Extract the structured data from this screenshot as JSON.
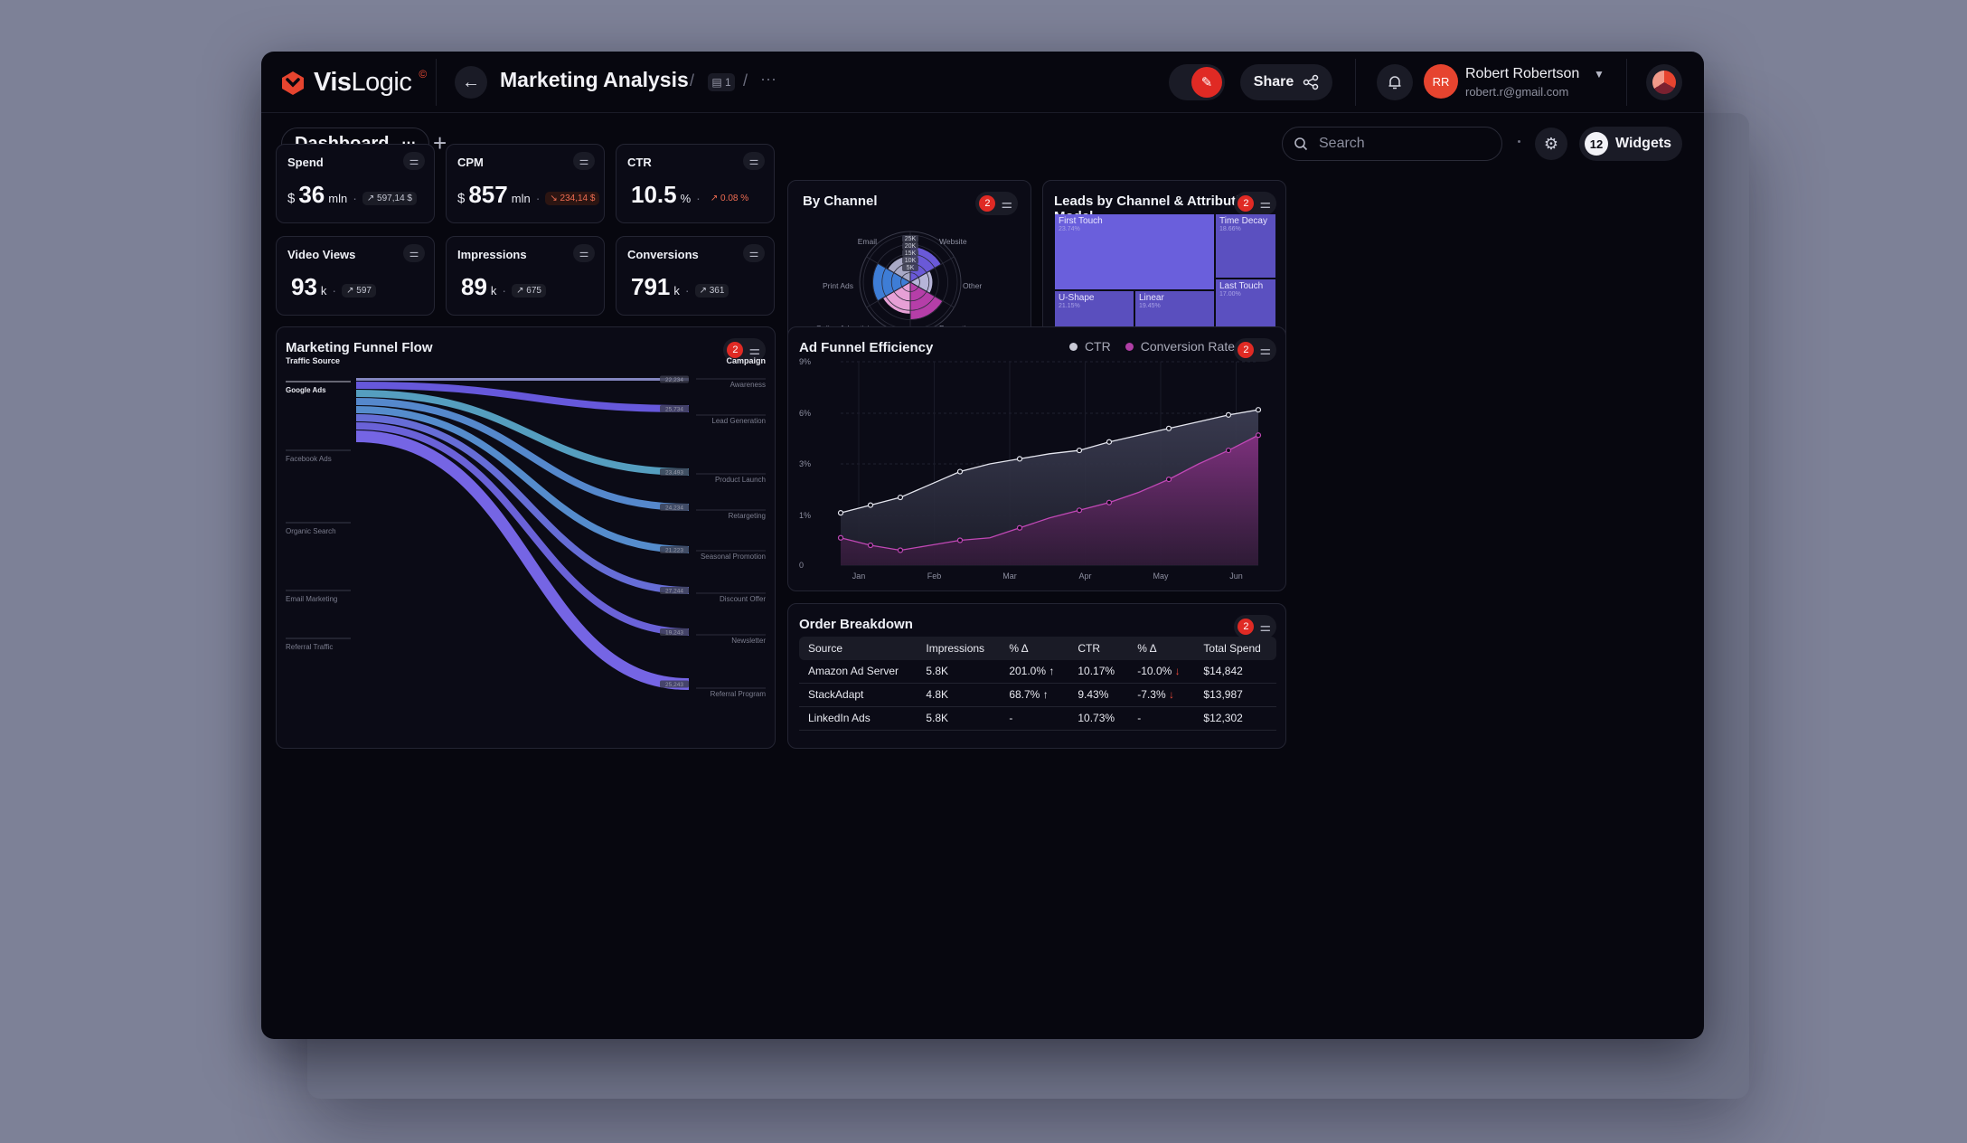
{
  "app": {
    "logo_text_bold": "Vis",
    "logo_text": "Logic",
    "logo_sup": "©",
    "title": "Marketing Analysis",
    "crumb_sep": "/",
    "crumb_box": "1",
    "crumb_more": "···"
  },
  "header": {
    "share_label": "Share",
    "user_initials": "RR",
    "user_name": "Robert Robertson",
    "user_email": "robert.r@gmail.com"
  },
  "subbar": {
    "tab_label": "Dashboard",
    "tab_more": "···",
    "add": "+",
    "search_placeholder": "Search",
    "widgets_count": "12",
    "widgets_label": "Widgets"
  },
  "kpis": [
    {
      "title": "Spend",
      "prefix": "$",
      "value": "36",
      "suffix": "mln",
      "delta": "↗ 597,14 $",
      "delta_style": "neutral"
    },
    {
      "title": "CPM",
      "prefix": "$",
      "value": "857",
      "suffix": "mln",
      "delta": "↘ 234,14 $",
      "delta_style": "red"
    },
    {
      "title": "CTR",
      "prefix": "",
      "value": "10.5",
      "suffix": "%",
      "delta": "↗ 0.08 %",
      "delta_style": "redtxt"
    },
    {
      "title": "Video Views",
      "prefix": "",
      "value": "93",
      "suffix": "k",
      "delta": "↗ 597",
      "delta_style": "neutral"
    },
    {
      "title": "Impressions",
      "prefix": "",
      "value": "89",
      "suffix": "k",
      "delta": "↗ 675",
      "delta_style": "neutral"
    },
    {
      "title": "Conversions",
      "prefix": "",
      "value": "791",
      "suffix": "k",
      "delta": "↗ 361",
      "delta_style": "neutral"
    }
  ],
  "by_channel": {
    "title": "By Channel",
    "badge": "2",
    "rings": [
      "25K",
      "20K",
      "15K",
      "10K",
      "5K"
    ],
    "categories": [
      "Email",
      "Website",
      "Print Ads",
      "Other",
      "Online Advertising",
      "Promotions"
    ],
    "slices": [
      {
        "name": "Website",
        "value": 19,
        "color": "#6a59d8"
      },
      {
        "name": "Other",
        "value": 12,
        "color": "#b6b4d8"
      },
      {
        "name": "Promotions",
        "value": 20,
        "color": "#b53ea8"
      },
      {
        "name": "Online Advertising",
        "value": 17,
        "color": "#e6a0d6"
      },
      {
        "name": "Print Ads",
        "value": 20,
        "color": "#3e7dd6"
      },
      {
        "name": "Email",
        "value": 14,
        "color": "#a9a9c6"
      }
    ]
  },
  "leads": {
    "title": "Leads by Channel & Attribution Model",
    "badge": "2",
    "tiles": [
      {
        "label": "First Touch",
        "pct": "23.74%",
        "color": "#6a5fdc"
      },
      {
        "label": "Time Decay",
        "pct": "18.66%",
        "color": "#5b50c0"
      },
      {
        "label": "Last Touch",
        "pct": "17.00%",
        "color": "#5b50c0"
      },
      {
        "label": "U-Shape",
        "pct": "21.15%",
        "color": "#5a4fbe"
      },
      {
        "label": "Linear",
        "pct": "19.45%",
        "color": "#5a4fbe"
      }
    ]
  },
  "funnel": {
    "title": "Marketing Funnel Flow",
    "badge": "2",
    "left_header": "Traffic Source",
    "right_header": "Campaign",
    "sources": [
      "Google Ads",
      "Facebook Ads",
      "Organic Search",
      "Email Marketing",
      "Referral Traffic"
    ],
    "targets": [
      {
        "name": "Awareness",
        "value": "22,234"
      },
      {
        "name": "Lead Generation",
        "value": "25,734"
      },
      {
        "name": "Product Launch",
        "value": "23,493"
      },
      {
        "name": "Retargeting",
        "value": "24,234"
      },
      {
        "name": "Seasonal Promotion",
        "value": "21,223"
      },
      {
        "name": "Discount Offer",
        "value": "27,244"
      },
      {
        "name": "Newsletter",
        "value": "19,243"
      },
      {
        "name": "Referral Program",
        "value": "25,243"
      }
    ]
  },
  "ad_funnel": {
    "title": "Ad Funnel Efficiency",
    "badge": "2",
    "legend": [
      {
        "label": "CTR",
        "color": "#c9cad6"
      },
      {
        "label": "Conversion Rate",
        "color": "#b03ea5"
      }
    ]
  },
  "chart_data": {
    "type": "area",
    "x": [
      "Jan",
      "Jan",
      "Jan",
      "Feb",
      "Feb",
      "Mar",
      "Mar",
      "Mar",
      "Apr",
      "Apr",
      "May",
      "May",
      "Jun",
      "Jun",
      "Jun"
    ],
    "x_ticks": [
      "Jan",
      "Feb",
      "Mar",
      "Apr",
      "May",
      "Jun"
    ],
    "y_ticks": [
      "9%",
      "6%",
      "3%",
      "1%",
      "0"
    ],
    "series": [
      {
        "name": "CTR",
        "values": [
          1.1,
          1.4,
          1.7,
          2.2,
          2.7,
          3.0,
          3.3,
          3.6,
          3.8,
          4.3,
          4.7,
          5.1,
          5.5,
          5.9,
          6.2
        ]
      },
      {
        "name": "Conversion Rate",
        "values": [
          0.55,
          0.4,
          0.3,
          0.4,
          0.5,
          0.55,
          0.75,
          0.95,
          1.2,
          1.5,
          1.9,
          2.4,
          3.0,
          3.8,
          4.7
        ]
      }
    ]
  },
  "orders": {
    "title": "Order Breakdown",
    "badge": "2",
    "columns": [
      "Source",
      "Impressions",
      "% Δ",
      "CTR",
      "% Δ",
      "Total Spend"
    ],
    "rows": [
      {
        "source": "Amazon Ad Server",
        "impressions": "5.8K",
        "imp_delta": "201.0%",
        "imp_dir": "up",
        "ctr": "10.17%",
        "ctr_delta": "-10.0%",
        "ctr_dir": "down",
        "spend": "$14,842"
      },
      {
        "source": "StackAdapt",
        "impressions": "4.8K",
        "imp_delta": "68.7%",
        "imp_dir": "up",
        "ctr": "9.43%",
        "ctr_delta": "-7.3%",
        "ctr_dir": "down",
        "spend": "$13,987"
      },
      {
        "source": "LinkedIn Ads",
        "impressions": "5.8K",
        "imp_delta": "-",
        "imp_dir": "",
        "ctr": "10.73%",
        "ctr_delta": "-",
        "ctr_dir": "",
        "spend": "$12,302"
      }
    ]
  }
}
